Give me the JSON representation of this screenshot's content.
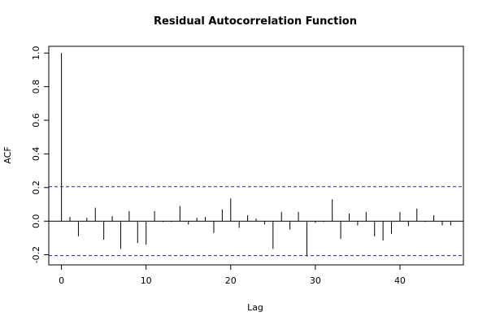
{
  "chart_data": {
    "type": "bar",
    "title": "Residual Autocorrelation Function",
    "xlabel": "Lag",
    "ylabel": "ACF",
    "xlim": [
      -1.5,
      47.5
    ],
    "ylim": [
      -0.26,
      1.04
    ],
    "x_ticks": [
      "0",
      "10",
      "20",
      "30",
      "40"
    ],
    "y_ticks": [
      "-0.2",
      "0.0",
      "0.2",
      "0.4",
      "0.6",
      "0.8",
      "1.0"
    ],
    "confidence_bounds": [
      0.205,
      -0.205
    ],
    "lags": [
      0,
      1,
      2,
      3,
      4,
      5,
      6,
      7,
      8,
      9,
      10,
      11,
      12,
      13,
      14,
      15,
      16,
      17,
      18,
      19,
      20,
      21,
      22,
      23,
      24,
      25,
      26,
      27,
      28,
      29,
      30,
      31,
      32,
      33,
      34,
      35,
      36,
      37,
      38,
      39,
      40,
      41,
      42,
      43,
      44,
      45,
      46
    ],
    "acf": [
      1.0,
      0.025,
      -0.09,
      0.02,
      0.08,
      -0.11,
      0.03,
      -0.165,
      0.06,
      -0.13,
      -0.14,
      0.06,
      -0.005,
      -0.005,
      0.09,
      -0.02,
      0.02,
      0.025,
      -0.07,
      0.07,
      0.135,
      -0.04,
      0.035,
      0.015,
      -0.02,
      -0.165,
      0.055,
      -0.05,
      0.055,
      -0.21,
      -0.01,
      -0.005,
      0.13,
      -0.105,
      0.045,
      -0.025,
      0.055,
      -0.09,
      -0.115,
      -0.075,
      0.055,
      -0.03,
      0.075,
      -0.005,
      0.035,
      -0.025,
      -0.025
    ],
    "colors": {
      "bars": "#000000",
      "bounds": "#2222aa",
      "zero_line": "#000000"
    }
  }
}
